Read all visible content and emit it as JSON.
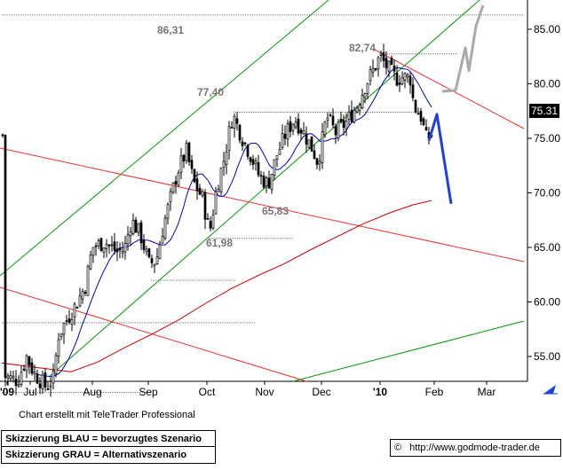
{
  "chart_data": {
    "type": "candlestick",
    "y_axis": {
      "range": [
        51,
        87.5
      ],
      "ticks": [
        "85.00",
        "80.00",
        "75.00",
        "70.00",
        "65.00",
        "60.00",
        "55.00"
      ],
      "tick_values": [
        85,
        80,
        75,
        70,
        65,
        60,
        55
      ],
      "position": "right"
    },
    "x_axis": {
      "labels": [
        "'09",
        "Jul",
        "Aug",
        "Sep",
        "Oct",
        "Nov",
        "Dec",
        "'10",
        "Feb",
        "Mar"
      ]
    },
    "last_price": "75.31",
    "price_labels": [
      "86,31",
      "82,74",
      "77,40",
      "65,83",
      "61,98"
    ],
    "colors": {
      "candles": "#000000",
      "moving_avg_short": "#0000cc",
      "moving_avg_long": "#cc0000",
      "channel_lines": "#009900",
      "trend_lines": "#ee3333",
      "forecast_blue": "#1f3fe0",
      "forecast_gray": "#aaaaaa",
      "horizontal_levels": "#777777",
      "label_text": "#777777"
    }
  },
  "footer": {
    "credit": "Chart erstellt mit TeleTrader Professional",
    "legend_blue": "Skizzierung BLAU = bevorzugtes Szenario",
    "legend_gray": "Skizzierung GRAU = Alternativszenario",
    "copyright": "©",
    "url": "http://www.godmode-trader.de"
  }
}
